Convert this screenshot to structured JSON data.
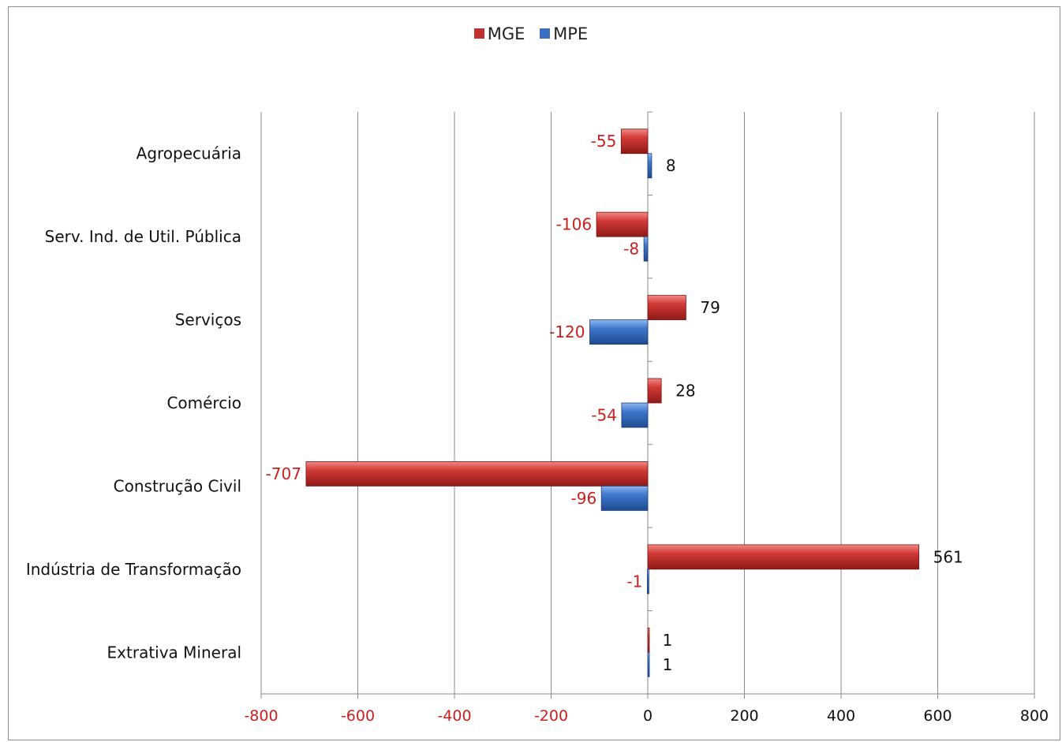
{
  "legend": {
    "items": [
      {
        "label": "MGE",
        "color": "#c0302f"
      },
      {
        "label": "MPE",
        "color": "#3a70c4"
      }
    ]
  },
  "chart_data": {
    "type": "bar",
    "orientation": "horizontal",
    "categories": [
      "Agropecuária",
      "Serv. Ind. de Util. Pública",
      "Serviços",
      "Comércio",
      "Construção Civil",
      "Indústria de Transformação",
      "Extrativa Mineral"
    ],
    "series": [
      {
        "name": "MGE",
        "color": "#c0302f",
        "values": [
          -55,
          -106,
          79,
          28,
          -707,
          561,
          1
        ]
      },
      {
        "name": "MPE",
        "color": "#3a70c4",
        "values": [
          8,
          -8,
          -120,
          -54,
          -96,
          -1,
          1
        ]
      }
    ],
    "xlim": [
      -800,
      800
    ],
    "xticks": [
      -800,
      -600,
      -400,
      -200,
      0,
      200,
      400,
      600,
      800
    ],
    "negative_label_color": "#cc1f1f",
    "positive_label_color": "#111111",
    "grid": true,
    "legend_position": "top-center"
  }
}
